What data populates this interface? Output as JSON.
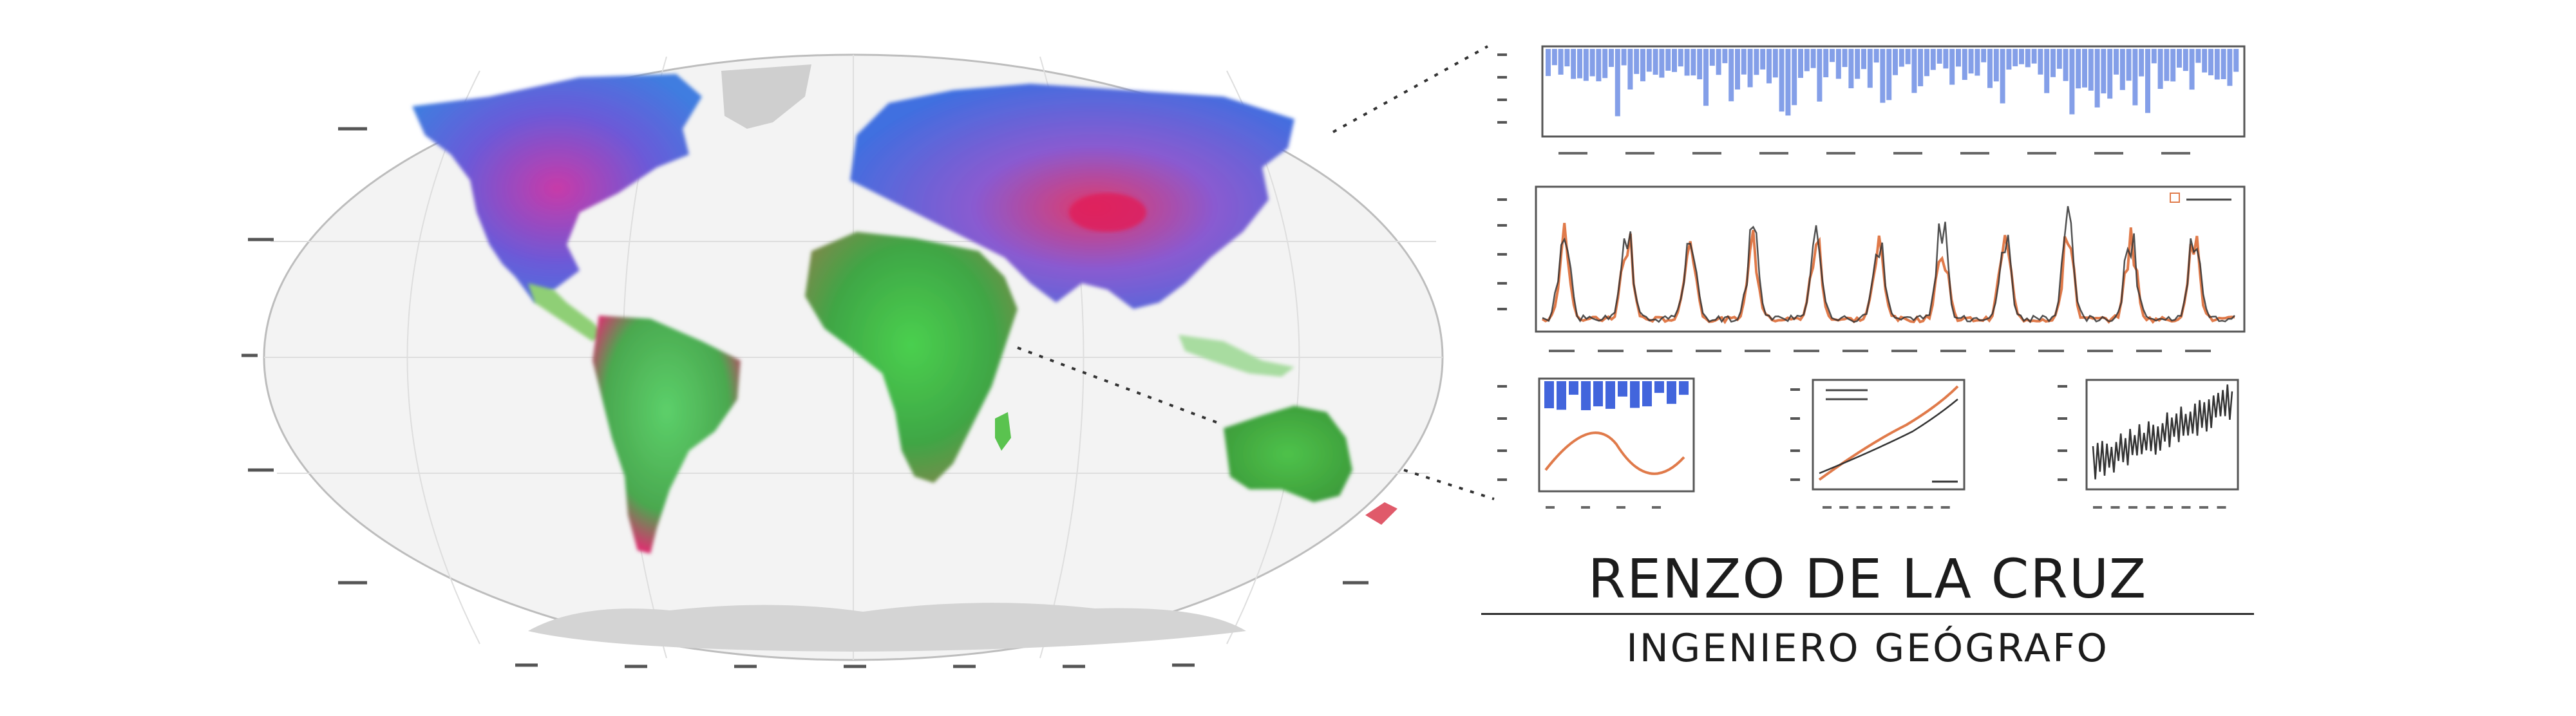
{
  "identity": {
    "name": "RENZO DE LA CRUZ",
    "title": "INGENIERO GEÓGRAFO"
  },
  "colors": {
    "accent_blue": "#5b7fe0",
    "accent_orange": "#e07a4a",
    "map_grey": "#d0d0d0",
    "land_green": "#4fc24a",
    "land_magenta": "#d23a9a"
  },
  "panels": [
    {
      "kind": "bar-timeseries",
      "color": "#5b7fe0"
    },
    {
      "kind": "line-timeseries",
      "series_colors": [
        "#e07a4a",
        "#333333"
      ]
    },
    {
      "kind": "seasonal-cycle",
      "series_colors": [
        "#2d54d8",
        "#e07a4a"
      ]
    },
    {
      "kind": "cumulative-line",
      "series_colors": [
        "#e07a4a",
        "#333333"
      ]
    },
    {
      "kind": "scatter-trend",
      "series_colors": [
        "#333333"
      ]
    }
  ]
}
